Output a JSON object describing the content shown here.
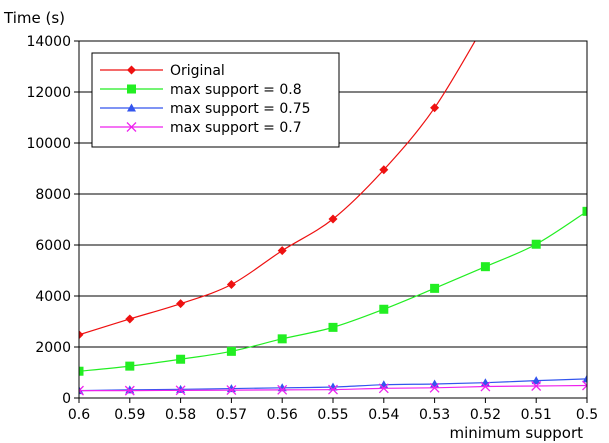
{
  "chart_data": {
    "type": "line",
    "title": "",
    "ylabel": "Time (s)",
    "xlabel": "minimum support",
    "x": [
      0.6,
      0.59,
      0.58,
      0.57,
      0.56,
      0.55,
      0.54,
      0.53,
      0.52,
      0.51,
      0.5
    ],
    "x_tick_labels": [
      "0.6",
      "0.59",
      "0.58",
      "0.57",
      "0.56",
      "0.55",
      "0.54",
      "0.53",
      "0.52",
      "0.51",
      "0.5"
    ],
    "ylim": [
      0,
      14000
    ],
    "y_ticks": [
      0,
      2000,
      4000,
      6000,
      8000,
      10000,
      12000,
      14000
    ],
    "y_tick_labels": [
      "0",
      "2000",
      "4000",
      "6000",
      "8000",
      "10000",
      "12000",
      "14000"
    ],
    "grid": "horizontal",
    "legend_position": "top-left",
    "series": [
      {
        "name": "Original",
        "color": "#ee1111",
        "marker": "diamond",
        "values": [
          2480,
          3100,
          3700,
          4450,
          5780,
          7020,
          8950,
          11380,
          14700,
          null,
          null
        ]
      },
      {
        "name": "max support = 0.8",
        "color": "#22ee22",
        "marker": "square",
        "values": [
          1050,
          1250,
          1520,
          1830,
          2320,
          2770,
          3480,
          4300,
          5150,
          6030,
          7320
        ]
      },
      {
        "name": "max support = 0.75",
        "color": "#3355ee",
        "marker": "triangle",
        "values": [
          290,
          320,
          340,
          370,
          400,
          430,
          520,
          550,
          600,
          680,
          750
        ]
      },
      {
        "name": "max support = 0.7",
        "color": "#ee22ee",
        "marker": "x",
        "values": [
          290,
          290,
          300,
          310,
          320,
          330,
          380,
          400,
          450,
          470,
          490
        ]
      }
    ]
  }
}
